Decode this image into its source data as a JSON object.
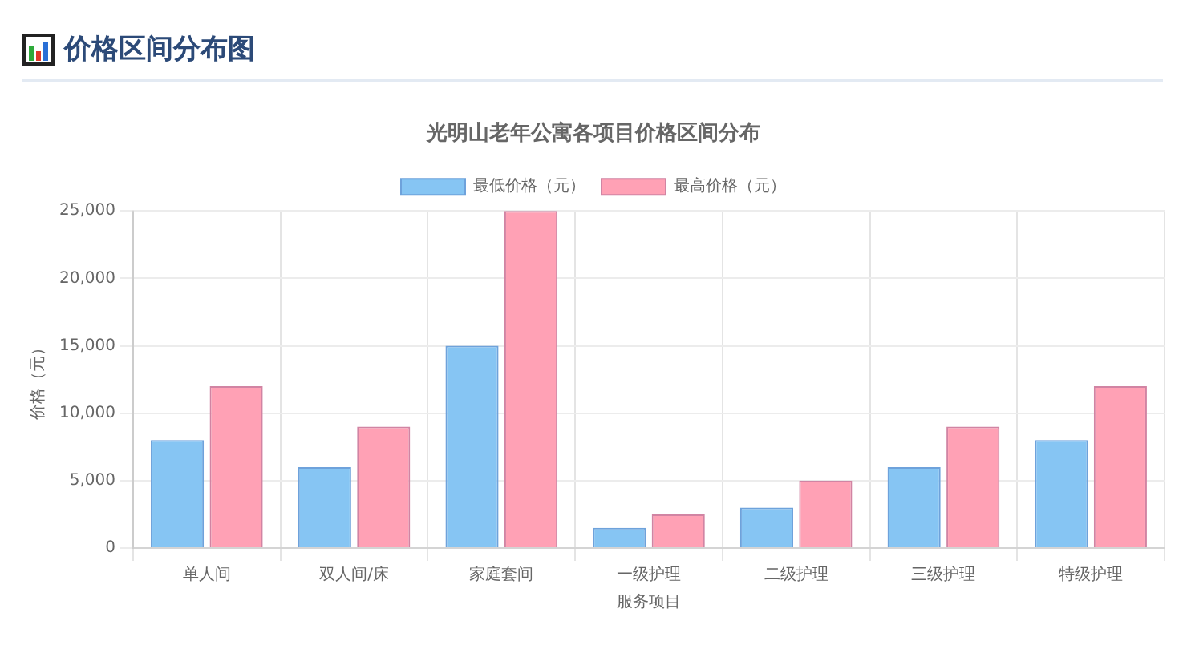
{
  "chart_data": {
    "type": "bar",
    "title": "价格区间分布图",
    "subtitle": "光明山老年公寓各项目价格区间分布",
    "xlabel": "服务项目",
    "ylabel": "价格（元）",
    "categories": [
      "单人间",
      "双人间/床",
      "家庭套间",
      "一级护理",
      "二级护理",
      "三级护理",
      "特级护理"
    ],
    "series": [
      {
        "name": "最低价格（元）",
        "color": "#86c5f3",
        "values": [
          8000,
          6000,
          15000,
          1500,
          3000,
          6000,
          8000
        ]
      },
      {
        "name": "最高价格（元）",
        "color": "#ffa1b5",
        "values": [
          12000,
          9000,
          25000,
          2500,
          5000,
          9000,
          12000
        ]
      }
    ],
    "ylim": [
      0,
      25000
    ],
    "yticks": [
      0,
      {
        "value": 5000,
        "label": "5,000"
      },
      {
        "value": 10000,
        "label": "10,000"
      },
      {
        "value": 15000,
        "label": "15,000"
      },
      {
        "value": 20000,
        "label": "20,000"
      },
      {
        "value": 25000,
        "label": "25,000"
      }
    ],
    "grid": true,
    "legend": "top"
  }
}
